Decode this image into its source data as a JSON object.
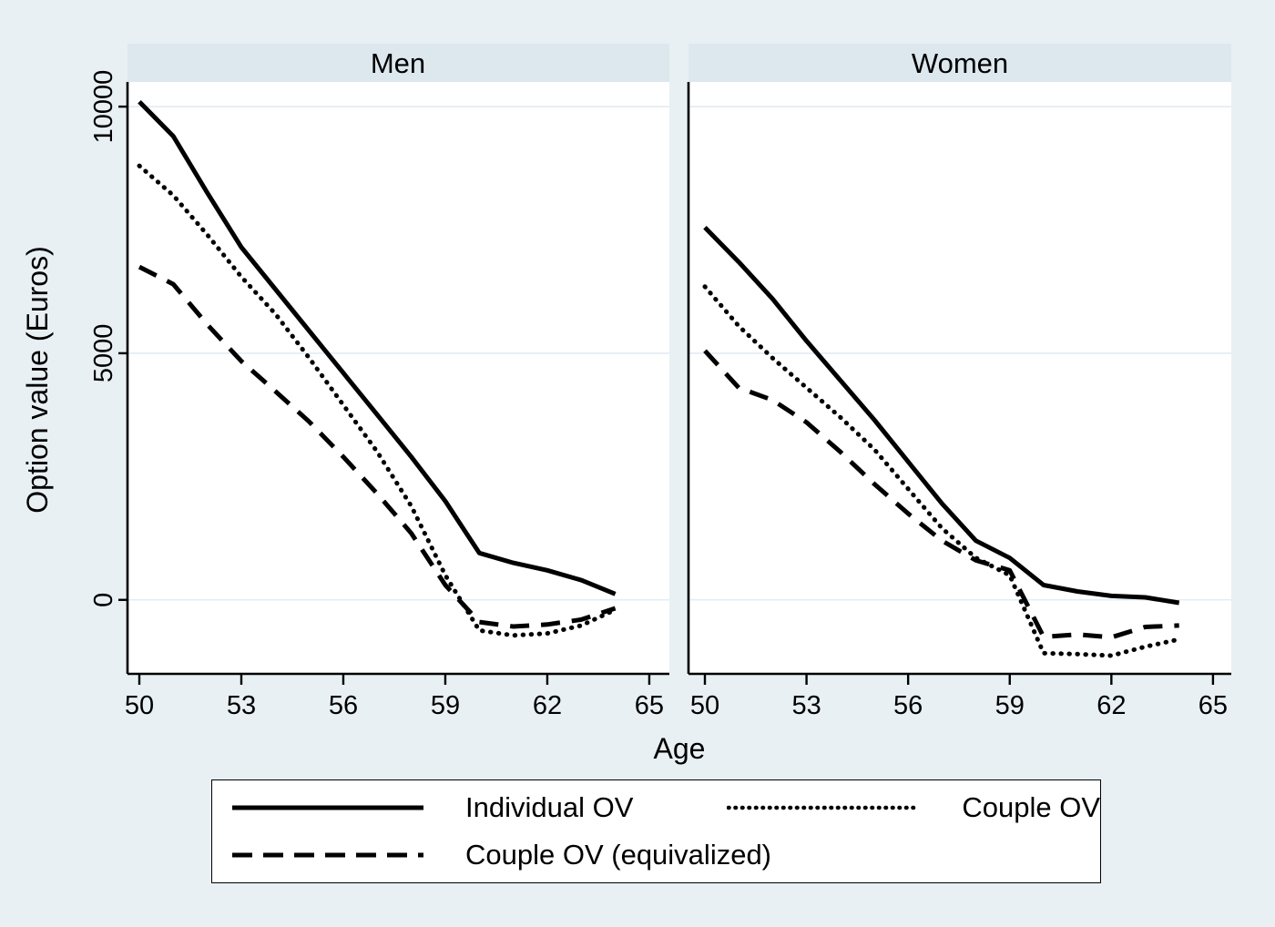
{
  "figure": {
    "ylabel": "Option value (Euros)",
    "xlabel": "Age"
  },
  "legend": {
    "entries": [
      {
        "label": "Individual OV",
        "style": "solid"
      },
      {
        "label": "Couple OV",
        "style": "dotted"
      },
      {
        "label": "Couple OV (equivalized)",
        "style": "dashed"
      }
    ]
  },
  "colors": {
    "background": "#e8f0f3",
    "panel_band": "#dde8ee",
    "plot_background": "#ffffff",
    "gridline": "#e2ecf3",
    "line": "#000000"
  },
  "chart_data": {
    "type": "line",
    "x": [
      50,
      51,
      52,
      53,
      54,
      55,
      56,
      57,
      58,
      59,
      60,
      61,
      62,
      63,
      64
    ],
    "x_ticks": [
      50,
      53,
      56,
      59,
      62,
      65
    ],
    "y_ticks": [
      0,
      5000,
      10000
    ],
    "ylim": [
      -1500,
      10500
    ],
    "xlabel": "Age",
    "ylabel": "Option value (Euros)",
    "grid": "horizontal",
    "legend_position": "bottom",
    "panels": [
      {
        "title": "Men",
        "series": [
          {
            "name": "Individual OV",
            "style": "solid",
            "values": [
              10100,
              9400,
              8250,
              7150,
              6300,
              5450,
              4600,
              3750,
              2900,
              2000,
              950,
              750,
              600,
              400,
              120
            ]
          },
          {
            "name": "Couple OV",
            "style": "dotted",
            "values": [
              8800,
              8200,
              7400,
              6550,
              5800,
              4900,
              3950,
              3000,
              1900,
              500,
              -620,
              -720,
              -680,
              -520,
              -200
            ]
          },
          {
            "name": "Couple OV (equivalized)",
            "style": "dashed",
            "values": [
              6750,
              6400,
              5580,
              4840,
              4230,
              3610,
              2900,
              2150,
              1350,
              300,
              -450,
              -540,
              -500,
              -400,
              -170
            ]
          }
        ]
      },
      {
        "title": "Women",
        "series": [
          {
            "name": "Individual OV",
            "style": "solid",
            "values": [
              7550,
              6850,
              6100,
              5250,
              4450,
              3650,
              2800,
              1950,
              1200,
              850,
              300,
              170,
              80,
              50,
              -60
            ]
          },
          {
            "name": "Couple OV",
            "style": "dotted",
            "values": [
              6350,
              5550,
              4900,
              4300,
              3700,
              3050,
              2250,
              1450,
              850,
              500,
              -1080,
              -1100,
              -1130,
              -950,
              -800
            ]
          },
          {
            "name": "Couple OV (equivalized)",
            "style": "dashed",
            "values": [
              5050,
              4300,
              4050,
              3600,
              3000,
              2350,
              1750,
              1200,
              800,
              600,
              -750,
              -700,
              -760,
              -550,
              -520
            ]
          }
        ]
      }
    ]
  }
}
